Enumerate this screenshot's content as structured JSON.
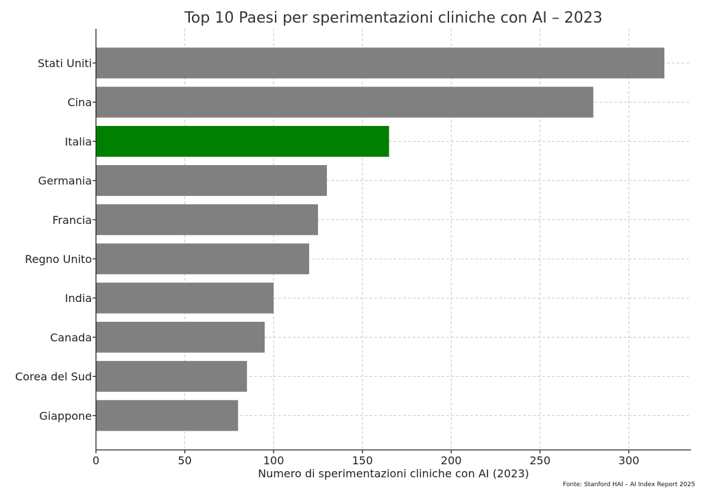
{
  "chart_data": {
    "type": "bar",
    "orientation": "horizontal",
    "title": "Top 10 Paesi per sperimentazioni cliniche con AI – 2023",
    "xlabel": "Numero di sperimentazioni cliniche con AI (2023)",
    "ylabel": "",
    "categories": [
      "Stati Uniti",
      "Cina",
      "Italia",
      "Germania",
      "Francia",
      "Regno Unito",
      "India",
      "Canada",
      "Corea del Sud",
      "Giappone"
    ],
    "values": [
      320,
      280,
      165,
      130,
      125,
      120,
      100,
      95,
      85,
      80
    ],
    "highlight": "Italia",
    "colors": {
      "default": "#808080",
      "highlight": "#008000"
    },
    "xlim": [
      0,
      335
    ],
    "xticks": [
      0,
      50,
      100,
      150,
      200,
      250,
      300
    ],
    "grid": true,
    "source": "Fonte: Stanford HAI – AI Index Report 2025"
  }
}
